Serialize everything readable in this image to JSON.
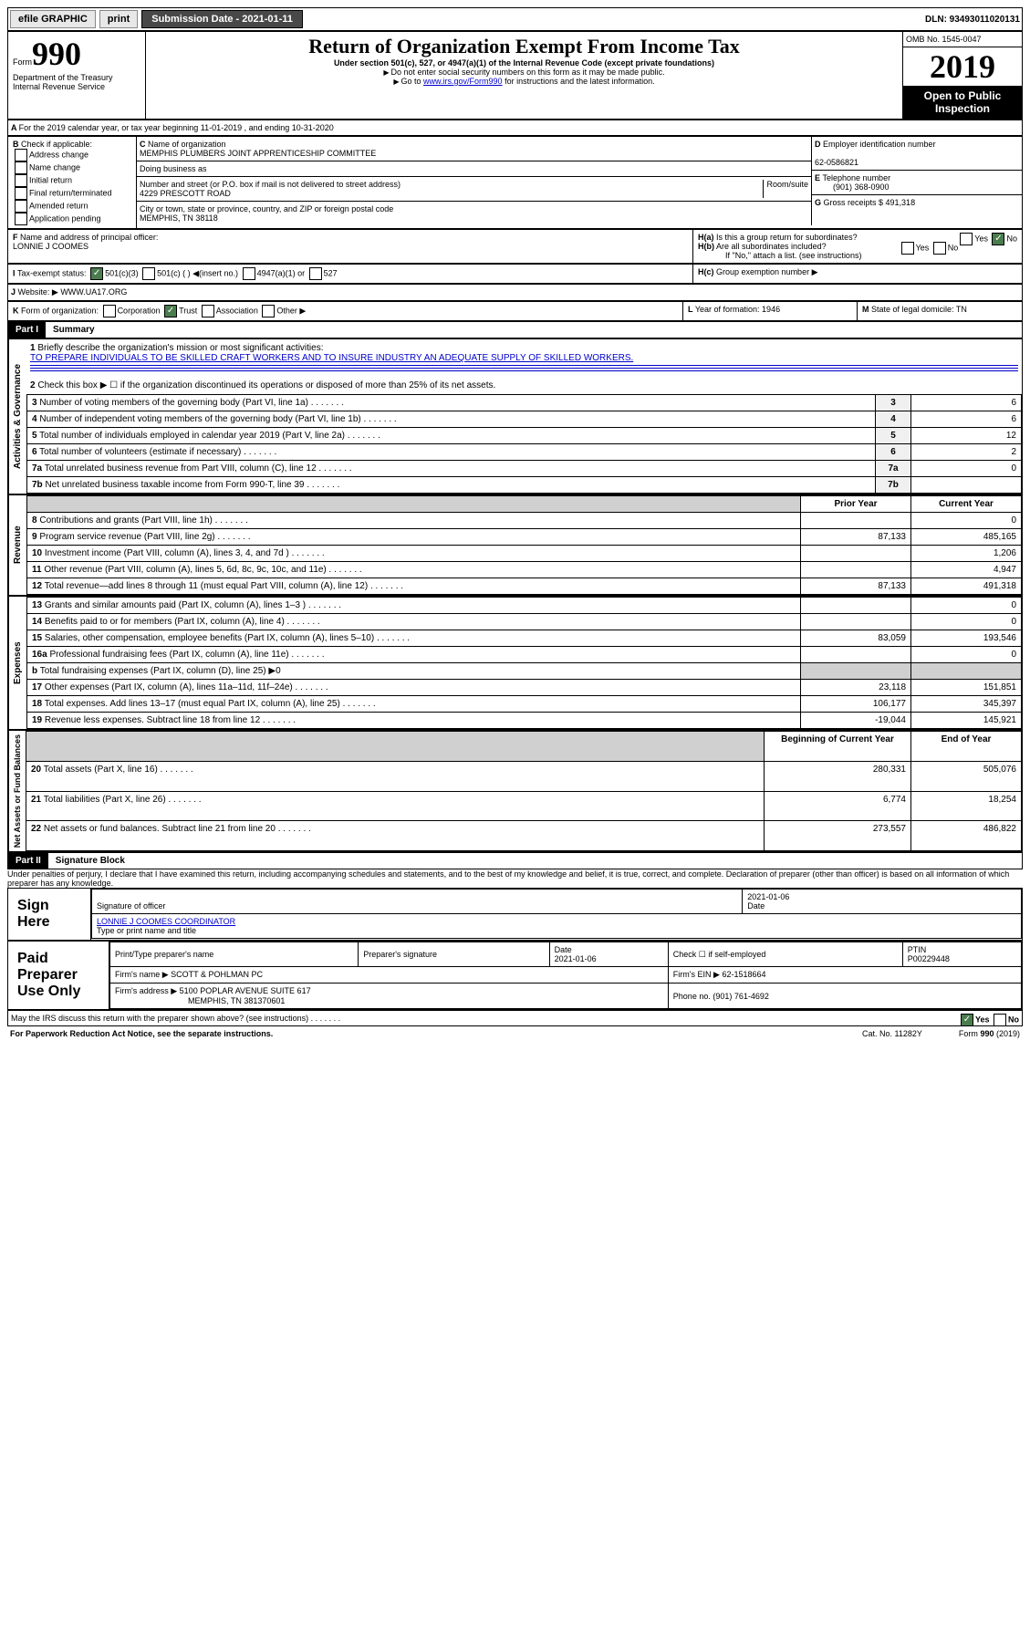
{
  "topbar": {
    "efile": "efile GRAPHIC",
    "print": "print",
    "subdate_label": "Submission Date - 2021-01-11",
    "dln": "DLN: 93493011020131"
  },
  "header": {
    "form": "Form",
    "num": "990",
    "dept": "Department of the Treasury",
    "irs": "Internal Revenue Service",
    "title": "Return of Organization Exempt From Income Tax",
    "subtitle": "Under section 501(c), 527, or 4947(a)(1) of the Internal Revenue Code (except private foundations)",
    "note1": "Do not enter social security numbers on this form as it may be made public.",
    "note2": "Go to",
    "note2_link": "www.irs.gov/Form990",
    "note2_end": " for instructions and the latest information.",
    "omb": "OMB No. 1545-0047",
    "year": "2019",
    "open": "Open to Public",
    "insp": "Inspection"
  },
  "secA": {
    "tax_year": "For the 2019 calendar year, or tax year beginning 11-01-2019    , and ending 10-31-2020",
    "B": "Check if applicable:",
    "b1": "Address change",
    "b2": "Name change",
    "b3": "Initial return",
    "b4": "Final return/terminated",
    "b5": "Amended return",
    "b6": "Application pending",
    "C": "Name of organization",
    "org": "MEMPHIS PLUMBERS JOINT APPRENTICESHIP COMMITTEE",
    "dba": "Doing business as",
    "addr_label": "Number and street (or P.O. box if mail is not delivered to street address)",
    "room": "Room/suite",
    "addr": "4229 PRESCOTT ROAD",
    "city_label": "City or town, state or province, country, and ZIP or foreign postal code",
    "city": "MEMPHIS, TN  38118",
    "D": "Employer identification number",
    "ein": "62-0586821",
    "E": "Telephone number",
    "phone": "(901) 368-0900",
    "G": "Gross receipts $ 491,318",
    "F": "Name and address of principal officer:",
    "officer": "LONNIE J COOMES",
    "Ha": "Is this a group return for subordinates?",
    "Hb": "Are all subordinates included?",
    "Hb_note": "If \"No,\" attach a list. (see instructions)",
    "Hc": "Group exemption number",
    "yes": "Yes",
    "no": "No",
    "I": "Tax-exempt status:",
    "i1": "501(c)(3)",
    "i2": "501(c) (  )",
    "i2b": "(insert no.)",
    "i3": "4947(a)(1) or",
    "i4": "527",
    "J": "Website:",
    "site": "WWW.UA17.ORG",
    "K": "Form of organization:",
    "k1": "Corporation",
    "k2": "Trust",
    "k3": "Association",
    "k4": "Other",
    "L": "Year of formation: 1946",
    "M": "State of legal domicile: TN"
  },
  "part1": {
    "label": "Part I",
    "title": "Summary"
  },
  "mission": {
    "q": "Briefly describe the organization's mission or most significant activities:",
    "text": "TO PREPARE INDIVIDUALS TO BE SKILLED CRAFT WORKERS AND TO INSURE INDUSTRY AN ADEQUATE SUPPLY OF SKILLED WORKERS."
  },
  "q2": "Check this box ▶ ☐ if the organization discontinued its operations or disposed of more than 25% of its net assets.",
  "governance": {
    "rows": [
      {
        "n": "3",
        "label": "Number of voting members of the governing body (Part VI, line 1a)",
        "val": "6"
      },
      {
        "n": "4",
        "label": "Number of independent voting members of the governing body (Part VI, line 1b)",
        "val": "6"
      },
      {
        "n": "5",
        "label": "Total number of individuals employed in calendar year 2019 (Part V, line 2a)",
        "val": "12"
      },
      {
        "n": "6",
        "label": "Total number of volunteers (estimate if necessary)",
        "val": "2"
      },
      {
        "n": "7a",
        "label": "Total unrelated business revenue from Part VIII, column (C), line 12",
        "val": "0"
      },
      {
        "n": "7b",
        "label": "Net unrelated business taxable income from Form 990-T, line 39",
        "val": ""
      }
    ]
  },
  "revenue": {
    "hdr_prior": "Prior Year",
    "hdr_curr": "Current Year",
    "rows": [
      {
        "n": "8",
        "label": "Contributions and grants (Part VIII, line 1h)",
        "prior": "",
        "curr": "0"
      },
      {
        "n": "9",
        "label": "Program service revenue (Part VIII, line 2g)",
        "prior": "87,133",
        "curr": "485,165"
      },
      {
        "n": "10",
        "label": "Investment income (Part VIII, column (A), lines 3, 4, and 7d )",
        "prior": "",
        "curr": "1,206"
      },
      {
        "n": "11",
        "label": "Other revenue (Part VIII, column (A), lines 5, 6d, 8c, 9c, 10c, and 11e)",
        "prior": "",
        "curr": "4,947"
      },
      {
        "n": "12",
        "label": "Total revenue—add lines 8 through 11 (must equal Part VIII, column (A), line 12)",
        "prior": "87,133",
        "curr": "491,318"
      }
    ]
  },
  "expenses": {
    "rows": [
      {
        "n": "13",
        "label": "Grants and similar amounts paid (Part IX, column (A), lines 1–3 )",
        "prior": "",
        "curr": "0"
      },
      {
        "n": "14",
        "label": "Benefits paid to or for members (Part IX, column (A), line 4)",
        "prior": "",
        "curr": "0"
      },
      {
        "n": "15",
        "label": "Salaries, other compensation, employee benefits (Part IX, column (A), lines 5–10)",
        "prior": "83,059",
        "curr": "193,546"
      },
      {
        "n": "16a",
        "label": "Professional fundraising fees (Part IX, column (A), line 11e)",
        "prior": "",
        "curr": "0"
      },
      {
        "n": "b",
        "label": "Total fundraising expenses (Part IX, column (D), line 25) ▶0",
        "prior": "GRAY",
        "curr": "GRAY"
      },
      {
        "n": "17",
        "label": "Other expenses (Part IX, column (A), lines 11a–11d, 11f–24e)",
        "prior": "23,118",
        "curr": "151,851"
      },
      {
        "n": "18",
        "label": "Total expenses. Add lines 13–17 (must equal Part IX, column (A), line 25)",
        "prior": "106,177",
        "curr": "345,397"
      },
      {
        "n": "19",
        "label": "Revenue less expenses. Subtract line 18 from line 12",
        "prior": "-19,044",
        "curr": "145,921"
      }
    ]
  },
  "netassets": {
    "hdr_beg": "Beginning of Current Year",
    "hdr_end": "End of Year",
    "rows": [
      {
        "n": "20",
        "label": "Total assets (Part X, line 16)",
        "beg": "280,331",
        "end": "505,076"
      },
      {
        "n": "21",
        "label": "Total liabilities (Part X, line 26)",
        "beg": "6,774",
        "end": "18,254"
      },
      {
        "n": "22",
        "label": "Net assets or fund balances. Subtract line 21 from line 20",
        "beg": "273,557",
        "end": "486,822"
      }
    ]
  },
  "part2": {
    "label": "Part II",
    "title": "Signature Block",
    "perjury": "Under penalties of perjury, I declare that I have examined this return, including accompanying schedules and statements, and to the best of my knowledge and belief, it is true, correct, and complete. Declaration of preparer (other than officer) is based on all information of which preparer has any knowledge."
  },
  "sign": {
    "label": "Sign Here",
    "sig_officer": "Signature of officer",
    "date": "2021-01-06",
    "date_label": "Date",
    "name": "LONNIE J COOMES  COORDINATOR",
    "name_label": "Type or print name and title"
  },
  "preparer": {
    "label": "Paid Preparer Use Only",
    "h1": "Print/Type preparer's name",
    "h2": "Preparer's signature",
    "h3": "Date",
    "h4": "Check ☐ if self-employed",
    "h5": "PTIN",
    "date": "2021-01-06",
    "ptin": "P00229448",
    "firm_label": "Firm's name",
    "firm": "SCOTT & POHLMAN PC",
    "ein_label": "Firm's EIN",
    "ein": "62-1518664",
    "addr_label": "Firm's address",
    "addr": "5100 POPLAR AVENUE SUITE 617",
    "city": "MEMPHIS, TN  381370601",
    "phone_label": "Phone no.",
    "phone": "(901) 761-4692"
  },
  "footer": {
    "discuss": "May the IRS discuss this return with the preparer shown above? (see instructions)",
    "paperwork": "For Paperwork Reduction Act Notice, see the separate instructions.",
    "cat": "Cat. No. 11282Y",
    "form": "Form",
    "num": "990",
    "yr": "(2019)"
  },
  "side": {
    "gov": "Activities & Governance",
    "rev": "Revenue",
    "exp": "Expenses",
    "net": "Net Assets or Fund Balances"
  }
}
